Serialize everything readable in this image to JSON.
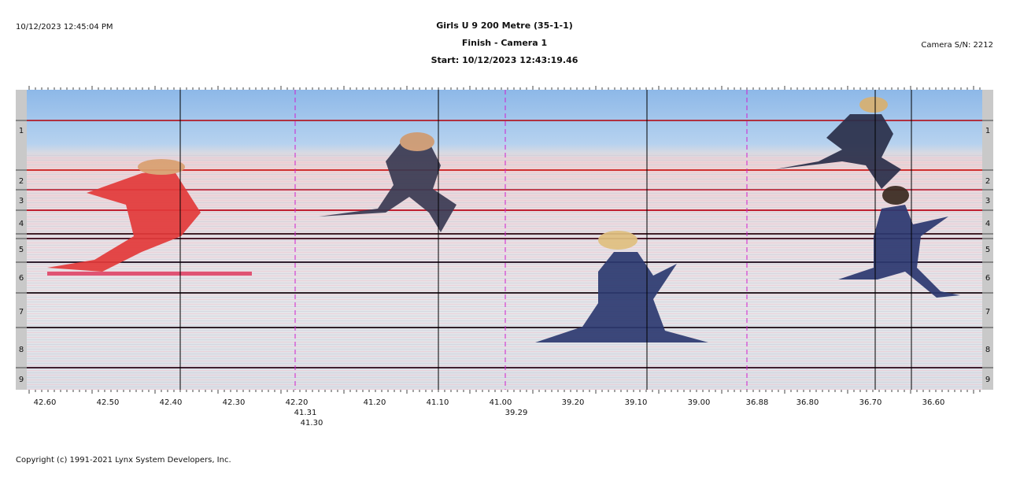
{
  "header": {
    "timestamp": "10/12/2023 12:45:04 PM",
    "title": "Girls U 9 200 Metre (35-1-1)",
    "subtitle": "Finish - Camera 1",
    "start": "Start: 10/12/2023 12:43:19.46",
    "camera": "Camera S/N: 2212"
  },
  "lanes": [
    "1",
    "2",
    "3",
    "4",
    "5",
    "6",
    "7",
    "8",
    "9"
  ],
  "time_axis": {
    "labels": [
      "42.60",
      "42.50",
      "42.40",
      "42.30",
      "42.20",
      "41.20",
      "41.10",
      "41.00",
      "39.20",
      "39.10",
      "39.00",
      "36.88",
      "36.80",
      "36.70",
      "36.60"
    ],
    "markers": [
      "41.31",
      "41.30",
      "39.29"
    ]
  },
  "footer": {
    "copyright": "Copyright (c) 1991-2021 Lynx System Developers, Inc."
  }
}
